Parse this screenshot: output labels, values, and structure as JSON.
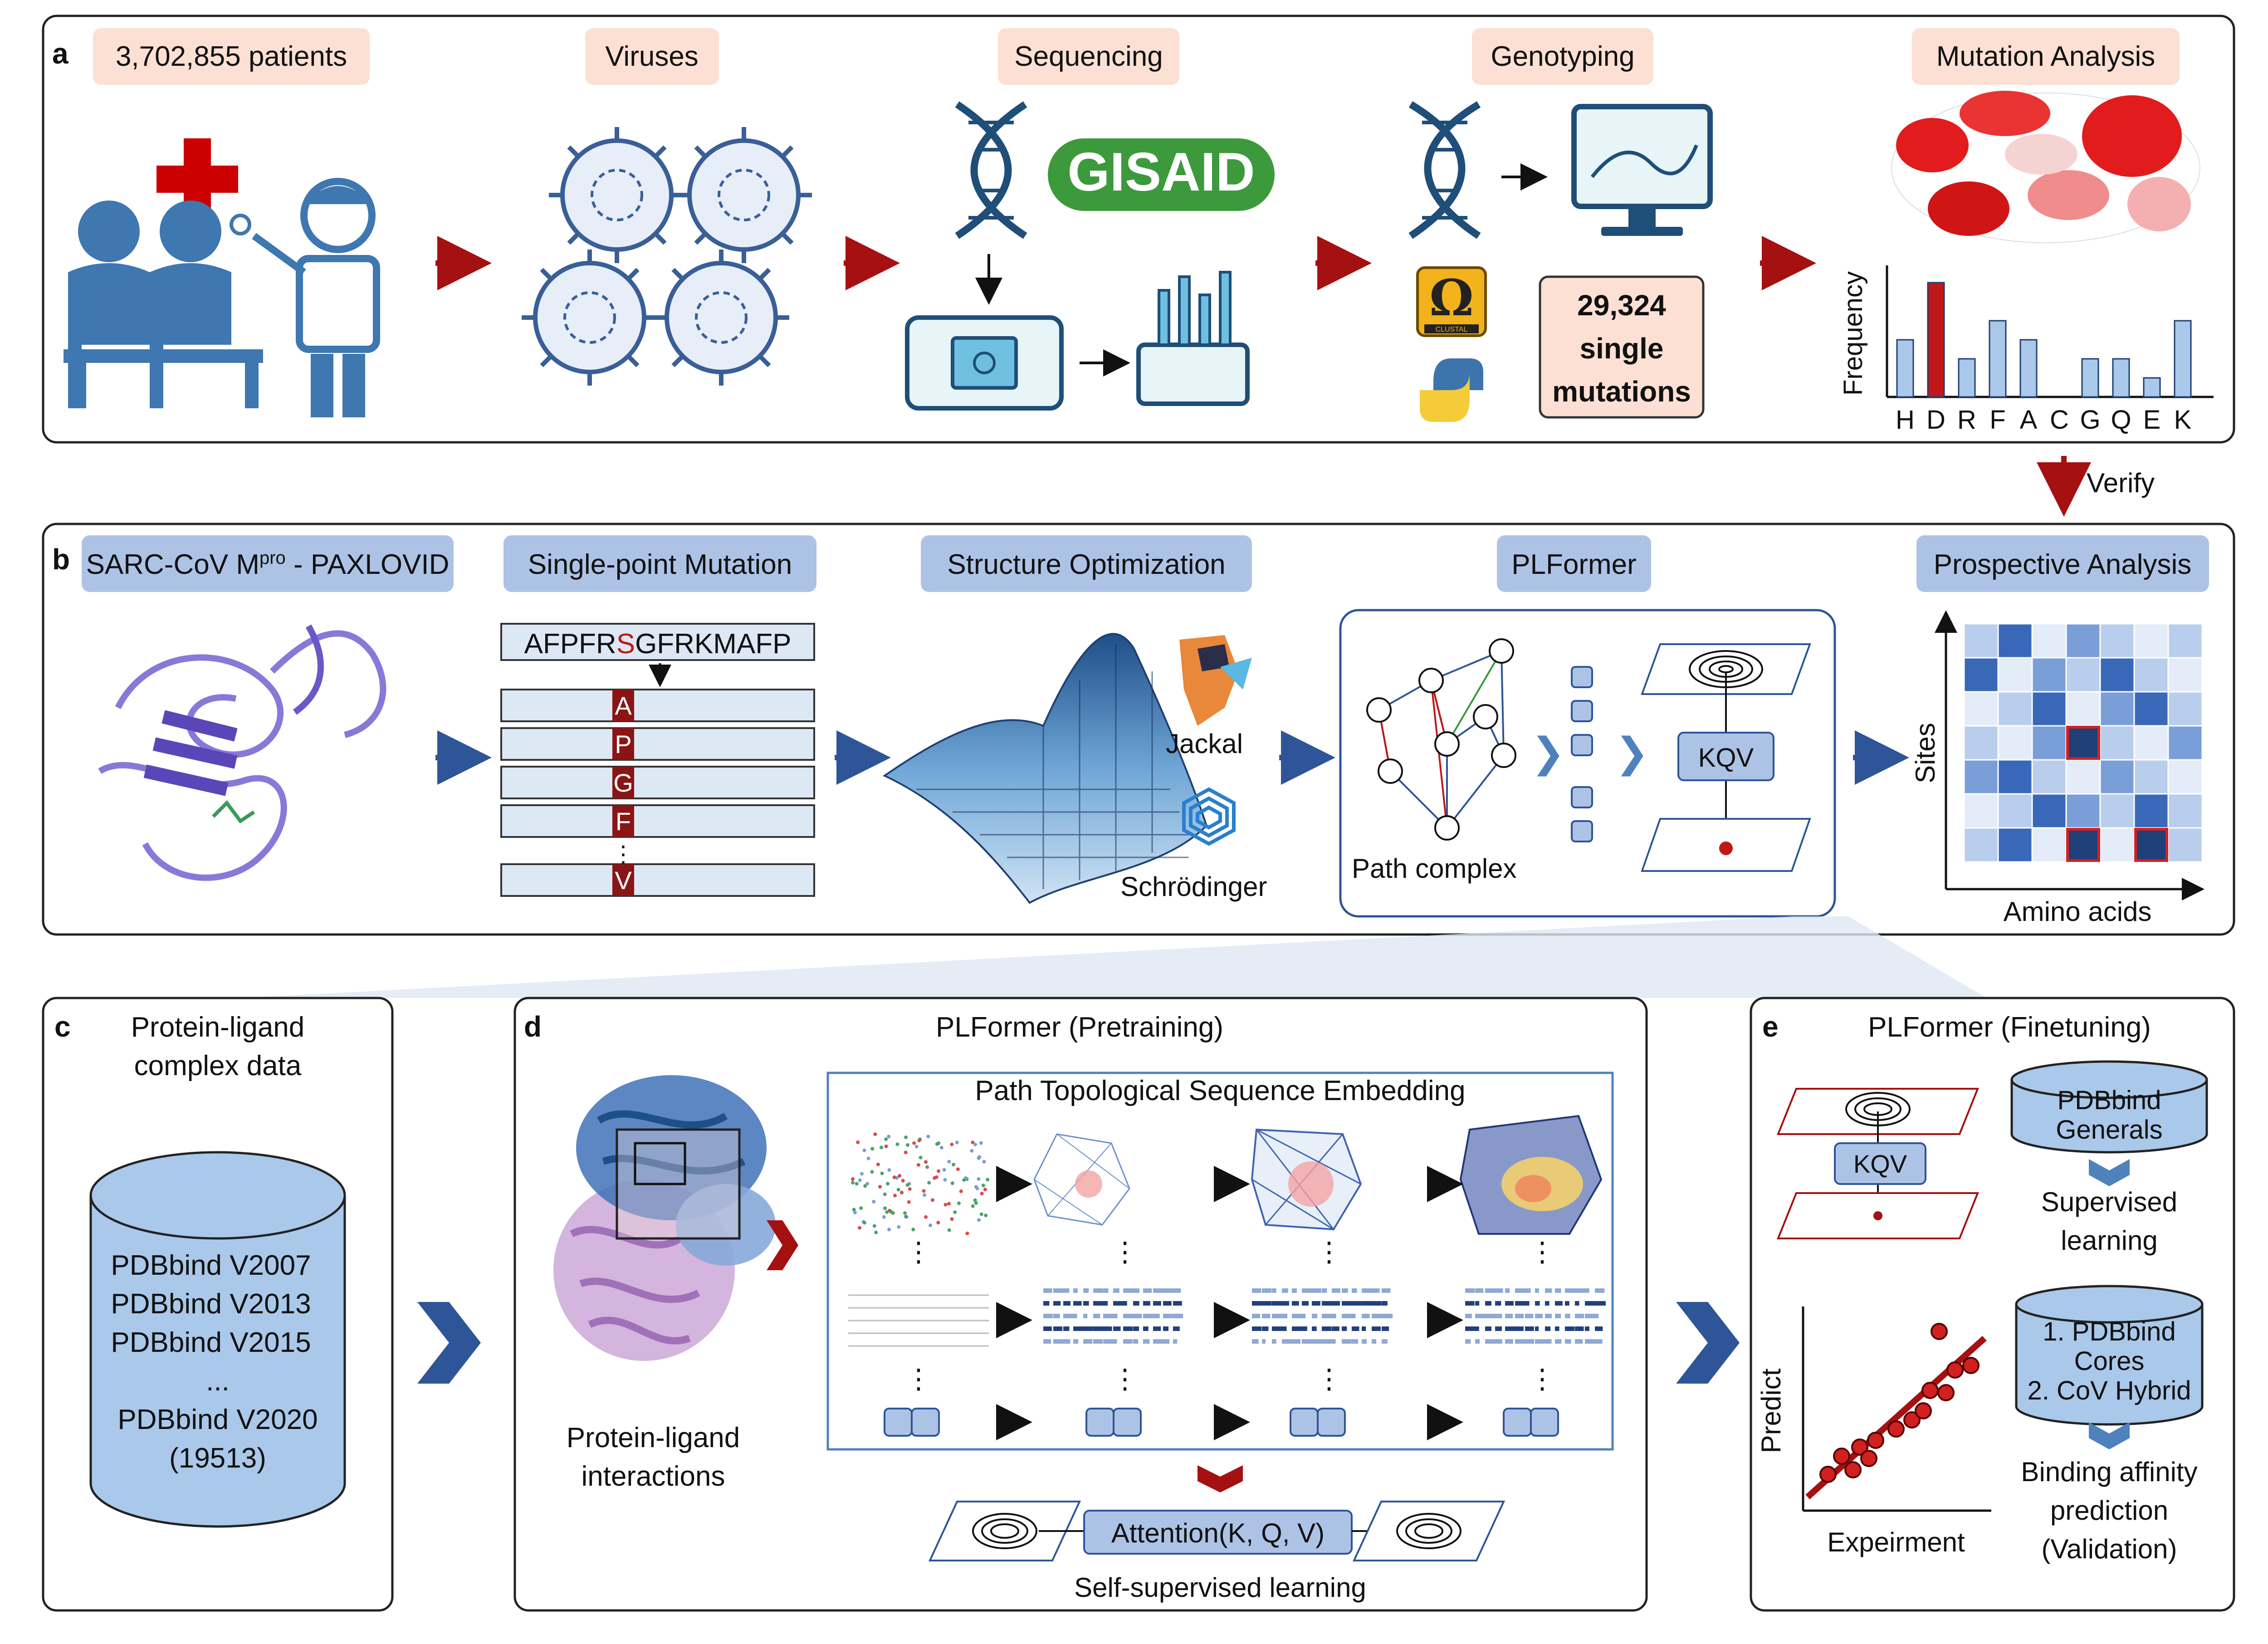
{
  "panels": {
    "a": {
      "label": "a",
      "steps": [
        "3,702,855 patients",
        "Viruses",
        "Sequencing",
        "Genotyping",
        "Mutation Analysis"
      ],
      "gisaid": "GISAID",
      "clustal": "CLUSTAL",
      "mutation_count": [
        "29,324",
        "single",
        "mutations"
      ],
      "freq_chart": {
        "ylabel": "Frequency",
        "categories": [
          "H",
          "D",
          "R",
          "F",
          "A",
          "C",
          "G",
          "Q",
          "E",
          "K"
        ],
        "values": [
          45,
          90,
          30,
          60,
          45,
          0,
          30,
          30,
          15,
          60
        ],
        "highlight": "D"
      },
      "verify": "Verify"
    },
    "b": {
      "label": "b",
      "title_main": "SARC-CoV M",
      "title_sup": "pro",
      "title_rest": " - PAXLOVID",
      "steps": [
        "Single-point Mutation",
        "Structure Optimization",
        "PLFormer",
        "Prospective Analysis"
      ],
      "sequence_before": "AFPFR",
      "sequence_mut": "S",
      "sequence_after": "GFRKMAFP",
      "mutations": [
        "A",
        "P",
        "G",
        "F",
        "V"
      ],
      "tools": [
        "Jackal",
        "Schrödinger"
      ],
      "kqv": "KQV",
      "path_complex": "Path complex",
      "heatmap_ylabel": "Sites",
      "heatmap_xlabel": "Amino acids"
    },
    "c": {
      "label": "c",
      "title": [
        "Protein-ligand",
        "complex data"
      ],
      "datasets": [
        "PDBbind V2007",
        "PDBbind V2013",
        "PDBbind V2015",
        "...",
        "PDBbind V2020",
        "(19513)"
      ]
    },
    "d": {
      "label": "d",
      "title": "PLFormer (Pretraining)",
      "embedding_title": "Path Topological Sequence Embedding",
      "caption": [
        "Protein-ligand",
        "interactions"
      ],
      "attention": "Attention(K, Q, V)",
      "ssl": "Self-supervised learning"
    },
    "e": {
      "label": "e",
      "title": "PLFormer (Finetuning)",
      "kqv": "KQV",
      "generals": [
        "PDBbind",
        "Generals"
      ],
      "supervised": [
        "Supervised",
        "learning"
      ],
      "cores": [
        "1. PDBbind",
        "Cores",
        "2. CoV Hybrid"
      ],
      "binding": [
        "Binding affinity",
        "prediction",
        "(Validation)"
      ],
      "xlabel": "Expeirment",
      "ylabel": "Predict"
    }
  },
  "colors": {
    "peach": "#fbe0d3",
    "blue_pill": "#adc3e6",
    "dark_red": "#a51010",
    "navy": "#2e5597",
    "purple": "#8a78d8"
  }
}
